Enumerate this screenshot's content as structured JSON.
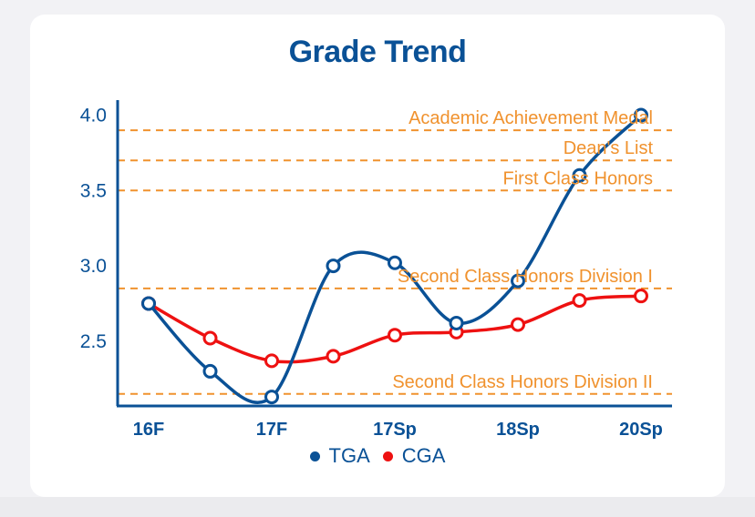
{
  "chart_data": {
    "type": "line",
    "title": "Grade Trend",
    "xlabel": "",
    "ylabel": "",
    "categories": [
      "16F",
      "",
      "17F",
      "",
      "17Sp",
      "",
      "18Sp",
      "",
      "20Sp"
    ],
    "ylim": [
      2.07,
      4.1
    ],
    "yticks": [
      "2.5",
      "3.0",
      "3.5",
      "4.0"
    ],
    "series": [
      {
        "name": "TGA",
        "color": "#0a5196",
        "values": [
          2.75,
          2.3,
          2.13,
          3.0,
          3.02,
          2.62,
          2.9,
          3.6,
          4.0
        ]
      },
      {
        "name": "CGA",
        "color": "#ee1111",
        "values": [
          2.75,
          2.52,
          2.37,
          2.4,
          2.54,
          2.56,
          2.61,
          2.77,
          2.8
        ]
      }
    ],
    "thresholds": [
      {
        "label": "Academic Achievement Medal",
        "value": 3.9
      },
      {
        "label": "Dean's List",
        "value": 3.7
      },
      {
        "label": "First Class Honors",
        "value": 3.5
      },
      {
        "label": "Second Class Honors Division I",
        "value": 2.85
      },
      {
        "label": "Second Class Honors Division II",
        "value": 2.15
      }
    ],
    "threshold_color": "#f0922e",
    "axis_color": "#0a5196",
    "grid": false,
    "legend_position": "bottom"
  }
}
